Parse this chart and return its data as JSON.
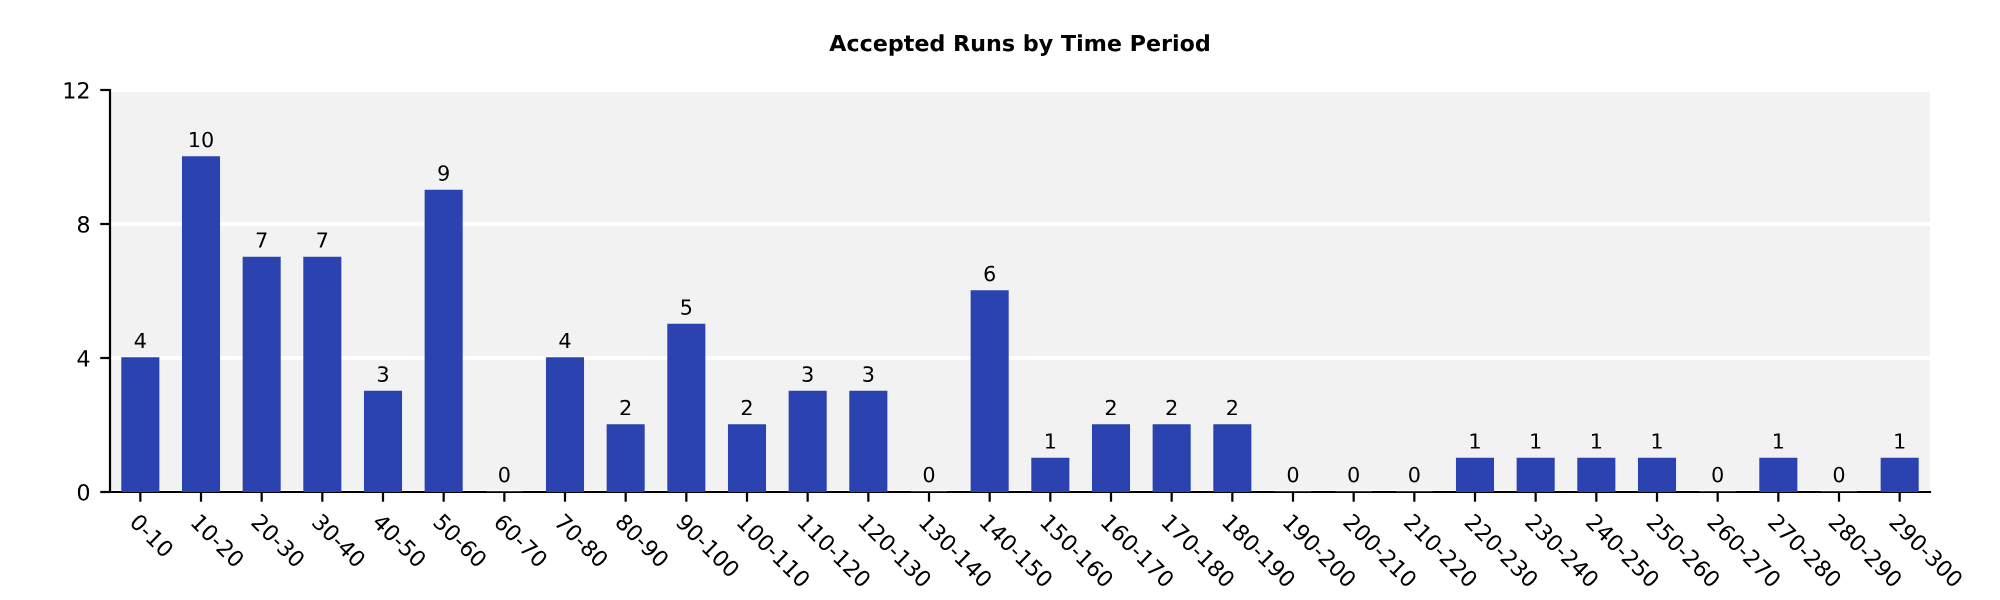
{
  "chart_data": {
    "type": "bar",
    "title": "Accepted Runs by Time Period",
    "categories": [
      "0-10",
      "10-20",
      "20-30",
      "30-40",
      "40-50",
      "50-60",
      "60-70",
      "70-80",
      "80-90",
      "90-100",
      "100-110",
      "110-120",
      "120-130",
      "130-140",
      "140-150",
      "150-160",
      "160-170",
      "170-180",
      "180-190",
      "190-200",
      "200-210",
      "210-220",
      "220-230",
      "230-240",
      "240-250",
      "250-260",
      "260-270",
      "270-280",
      "280-290",
      "290-300"
    ],
    "values": [
      4,
      10,
      7,
      7,
      3,
      9,
      0,
      4,
      2,
      5,
      2,
      3,
      3,
      0,
      6,
      1,
      2,
      2,
      2,
      0,
      0,
      0,
      1,
      1,
      1,
      1,
      0,
      1,
      0,
      1
    ],
    "color": "#2b43b0",
    "ylim": [
      0,
      12
    ],
    "yticks": [
      0,
      4,
      8,
      12
    ],
    "grid": "y",
    "data_labels": true
  }
}
